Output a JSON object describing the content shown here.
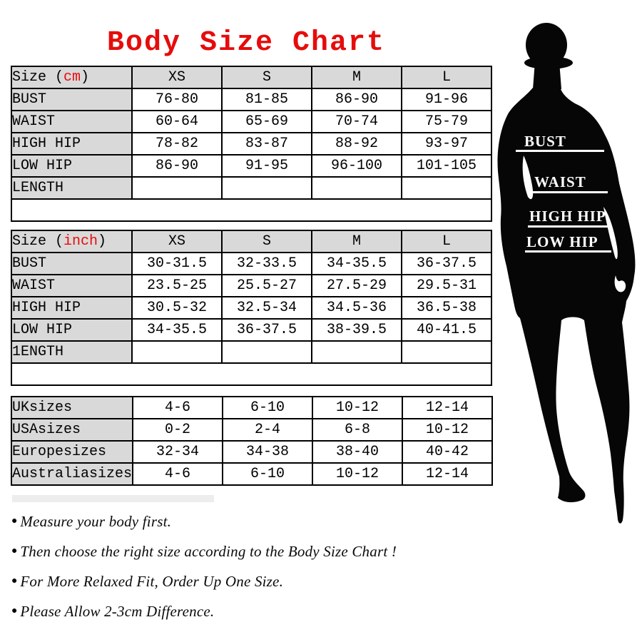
{
  "title": {
    "text": "Body Size Chart"
  },
  "colors": {
    "accent_red": "#e60c0c",
    "header_gray": "#d9d9d9",
    "border_black": "#000000",
    "silhouette_black": "#060606"
  },
  "tables": [
    {
      "header": {
        "label_prefix": "Size (",
        "label_accent": "cm",
        "label_suffix": ")",
        "sizes": [
          "XS",
          "S",
          "M",
          "L"
        ]
      },
      "trailing_strip": true,
      "rows": [
        {
          "label": "BUST",
          "cells": [
            "76-80",
            "81-85",
            "86-90",
            "91-96"
          ]
        },
        {
          "label": "WAIST",
          "cells": [
            "60-64",
            "65-69",
            "70-74",
            "75-79"
          ]
        },
        {
          "label": "HIGH HIP",
          "cells": [
            "78-82",
            "83-87",
            "88-92",
            "93-97"
          ]
        },
        {
          "label": "LOW HIP",
          "cells": [
            "86-90",
            "91-95",
            "96-100",
            "101-105"
          ]
        },
        {
          "label": "LENGTH",
          "cells": [
            "",
            "",
            "",
            ""
          ]
        }
      ]
    },
    {
      "header": {
        "label_prefix": "Size (",
        "label_accent": "inch",
        "label_suffix": ")",
        "sizes": [
          "XS",
          "S",
          "M",
          "L"
        ]
      },
      "trailing_strip": true,
      "rows": [
        {
          "label": "BUST",
          "cells": [
            "30-31.5",
            "32-33.5",
            "34-35.5",
            "36-37.5"
          ]
        },
        {
          "label": "WAIST",
          "cells": [
            "23.5-25",
            "25.5-27",
            "27.5-29",
            "29.5-31"
          ]
        },
        {
          "label": "HIGH HIP",
          "cells": [
            "30.5-32",
            "32.5-34",
            "34.5-36",
            "36.5-38"
          ]
        },
        {
          "label": "LOW HIP",
          "cells": [
            "34-35.5",
            "36-37.5",
            "38-39.5",
            "40-41.5"
          ]
        },
        {
          "label": "1ENGTH",
          "cells": [
            "",
            "",
            "",
            ""
          ]
        }
      ]
    },
    {
      "trailing_strip": false,
      "rows": [
        {
          "label": "UK",
          "label_suffix": "sizes",
          "cells": [
            "4-6",
            "6-10",
            "10-12",
            "12-14"
          ]
        },
        {
          "label": "USA",
          "label_suffix": "sizes",
          "cells": [
            "0-2",
            "2-4",
            "6-8",
            "10-12"
          ]
        },
        {
          "label": "Europe",
          "label_suffix": "sizes",
          "cells": [
            "32-34",
            "34-38",
            "38-40",
            "40-42"
          ]
        },
        {
          "label": "Australia",
          "label_suffix": "sizes",
          "cells": [
            "4-6",
            "6-10",
            "10-12",
            "12-14"
          ]
        }
      ]
    }
  ],
  "figure": {
    "labels": [
      "BUST",
      "WAIST",
      "HIGH HIP",
      "LOW HIP"
    ]
  },
  "notes": [
    "Measure your body first.",
    "Then choose the right size according to the Body Size Chart !",
    "For More Relaxed Fit,  Order Up One Size.",
    "Please Allow 2-3cm Difference."
  ]
}
